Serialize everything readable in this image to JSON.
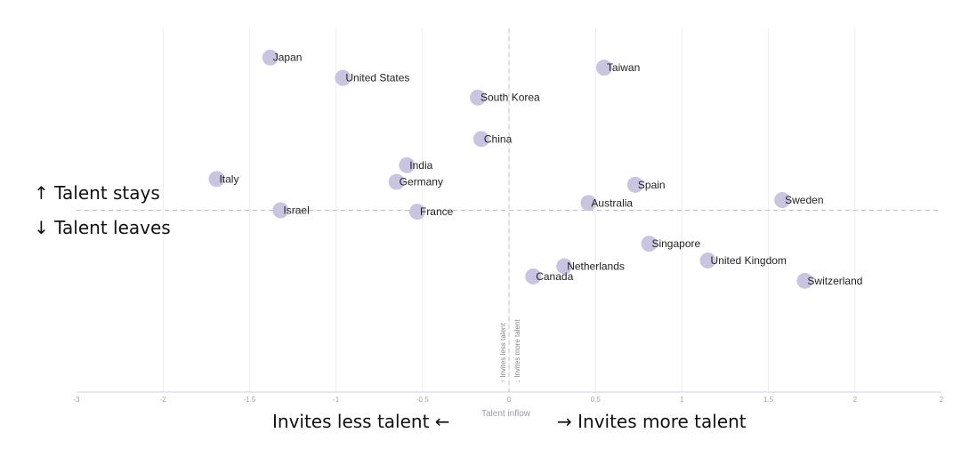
{
  "chart_data": {
    "type": "scatter",
    "x_ticks": [
      "-3",
      "-2",
      "-1.5",
      "-1",
      "-0.5",
      "0",
      "0.5",
      "1",
      "1.5",
      "2",
      "2"
    ],
    "xlim": [
      -2.5,
      2.5
    ],
    "ylim": [
      -2.5,
      2.5
    ],
    "grid": true,
    "xlabel": "Talent inflow",
    "center_labels": {
      "up": "↑ Invites less talent",
      "down": "↓ Invites more talent"
    },
    "quadrant_labels": {
      "talent_stays": "↑ Talent stays",
      "talent_leaves": "↓ Talent leaves",
      "invites_less": "Invites less talent ←",
      "invites_more": "→ Invites more talent"
    },
    "marker_color": "#c9c4df",
    "points": [
      {
        "label": "Japan",
        "x": -1.38,
        "y": 2.1
      },
      {
        "label": "United States",
        "x": -0.96,
        "y": 1.82
      },
      {
        "label": "Taiwan",
        "x": 0.55,
        "y": 1.96
      },
      {
        "label": "South Korea",
        "x": -0.18,
        "y": 1.55
      },
      {
        "label": "China",
        "x": -0.16,
        "y": 0.98
      },
      {
        "label": "India",
        "x": -0.59,
        "y": 0.62
      },
      {
        "label": "Italy",
        "x": -1.69,
        "y": 0.43
      },
      {
        "label": "Germany",
        "x": -0.65,
        "y": 0.39
      },
      {
        "label": "Spain",
        "x": 0.73,
        "y": 0.35
      },
      {
        "label": "Sweden",
        "x": 1.58,
        "y": 0.14
      },
      {
        "label": "Australia",
        "x": 0.46,
        "y": 0.1
      },
      {
        "label": "Israel",
        "x": -1.32,
        "y": 0.0
      },
      {
        "label": "France",
        "x": -0.53,
        "y": -0.02
      },
      {
        "label": "Singapore",
        "x": 0.81,
        "y": -0.46
      },
      {
        "label": "United Kingdom",
        "x": 1.15,
        "y": -0.69
      },
      {
        "label": "Netherlands",
        "x": 0.32,
        "y": -0.77
      },
      {
        "label": "Canada",
        "x": 0.14,
        "y": -0.91
      },
      {
        "label": "Switzerland",
        "x": 1.71,
        "y": -0.97
      }
    ]
  }
}
